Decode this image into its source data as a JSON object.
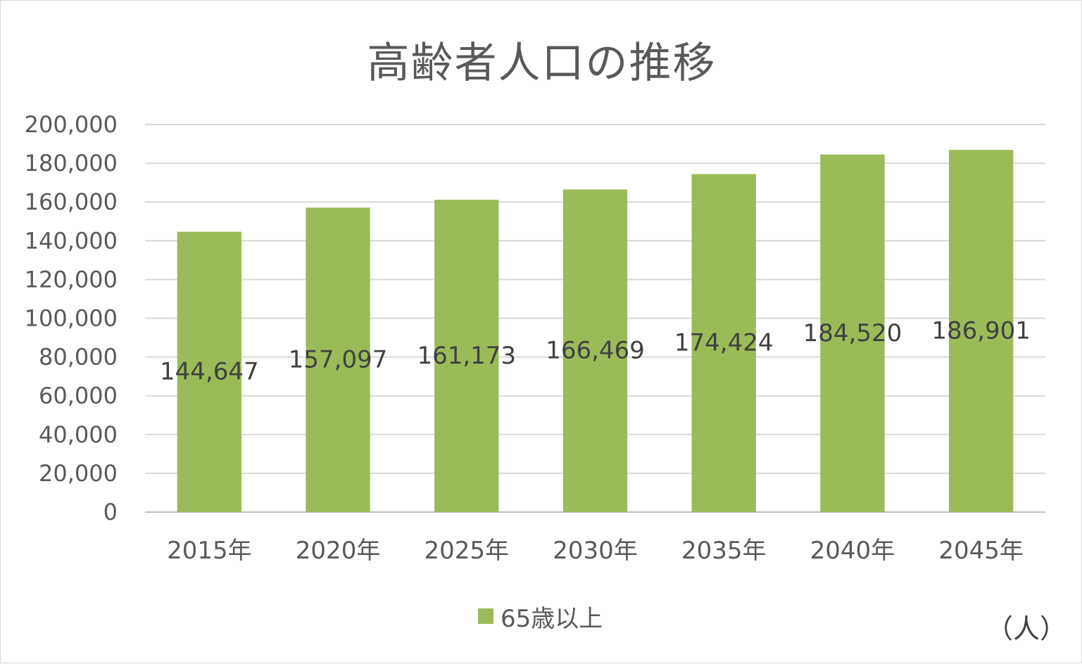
{
  "chart_data": {
    "type": "bar",
    "title": "高齢者人口の推移",
    "categories": [
      "2015年",
      "2020年",
      "2025年",
      "2030年",
      "2035年",
      "2040年",
      "2045年"
    ],
    "series": [
      {
        "name": "65歳以上",
        "values": [
          144647,
          157097,
          161173,
          166469,
          174424,
          184520,
          186901
        ],
        "color": "#9bbb59"
      }
    ],
    "data_labels": [
      "144,647",
      "157,097",
      "161,173",
      "166,469",
      "174,424",
      "184,520",
      "186,901"
    ],
    "yticks": [
      "0",
      "20,000",
      "40,000",
      "60,000",
      "80,000",
      "100,000",
      "120,000",
      "140,000",
      "160,000",
      "180,000",
      "200,000"
    ],
    "ylim": [
      0,
      200000
    ],
    "grid": true,
    "legend_position": "bottom",
    "unit_label": "（人）"
  }
}
